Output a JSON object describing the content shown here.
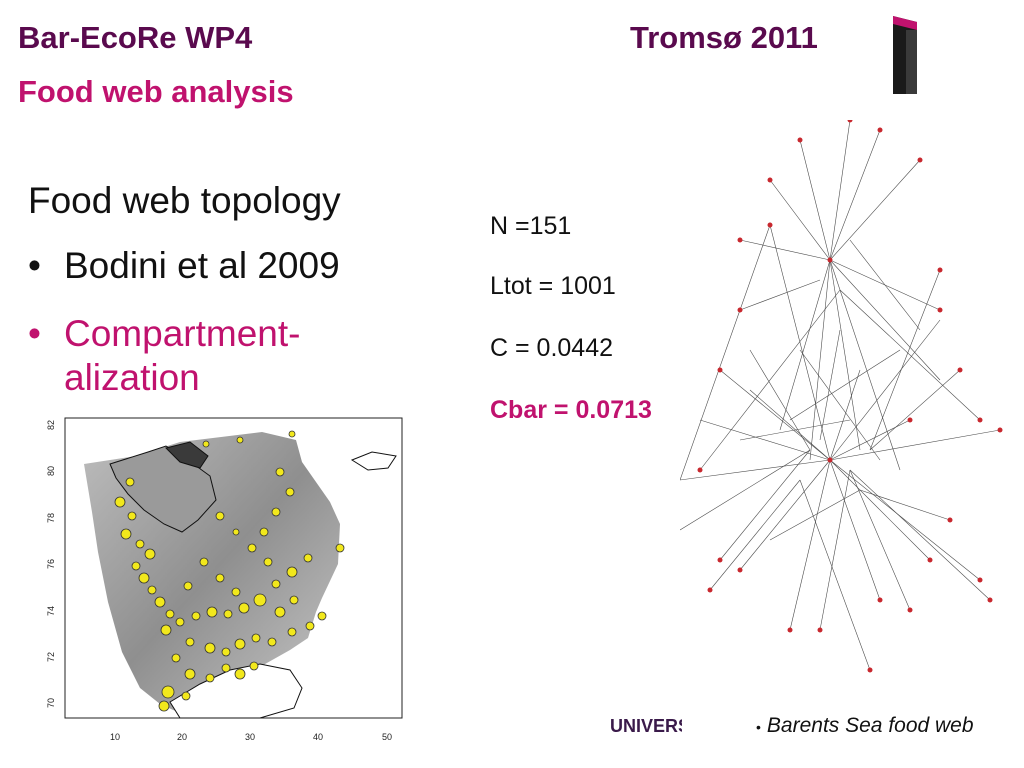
{
  "header": {
    "project": "Bar-EcoRe WP4",
    "subtitle": "Food web analysis",
    "location_year": "Tromsø 2011",
    "brand_colors": {
      "dark": "#5a0a4e",
      "accent": "#c0126e"
    }
  },
  "content": {
    "heading": "Food web topology",
    "bullets": [
      {
        "bullet": "•",
        "text": "Bodini et al 2009"
      },
      {
        "bullet": "•",
        "text": "Compartment-alization"
      }
    ]
  },
  "stats": {
    "n": "N =151",
    "ltot": "Ltot = 1001",
    "c": "C = 0.0442",
    "cbar": "Cbar = 0.0713"
  },
  "map": {
    "y_ticks": [
      "82",
      "80",
      "78",
      "76",
      "74",
      "72",
      "70"
    ],
    "x_ticks": [
      "10",
      "20",
      "30",
      "40",
      "50"
    ]
  },
  "footer": {
    "university": "UNIVERSITETET",
    "web_caption": "Barents Sea food web",
    "caption_bullet": "•"
  }
}
